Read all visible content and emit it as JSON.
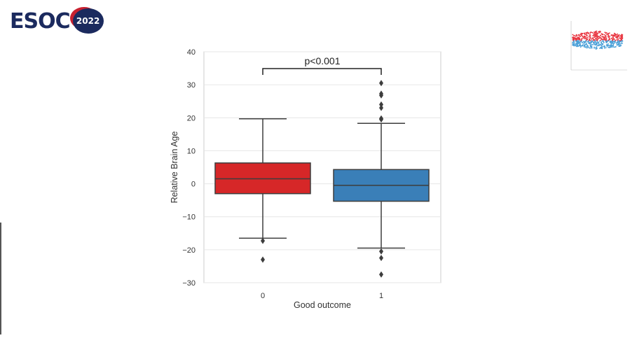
{
  "header": {
    "logo_text": "ESOC",
    "logo_year": "2022"
  },
  "chart_data": {
    "type": "box",
    "xlabel": "Good outcome",
    "ylabel": "Relative Brain Age",
    "categories": [
      "0",
      "1"
    ],
    "ylim": [
      -30,
      40
    ],
    "yticks": [
      "40",
      "30",
      "20",
      "10",
      "0",
      "−10",
      "−20",
      "−30"
    ],
    "ytick_values": [
      40,
      30,
      20,
      10,
      0,
      -10,
      -20,
      -30
    ],
    "grid": true,
    "annotation": "p<0.001",
    "boxes": [
      {
        "category": "0",
        "color": "#d62728",
        "q1": -3,
        "median": 1.5,
        "q3": 6.3,
        "whisker_low": -16.5,
        "whisker_high": 19.7,
        "outliers": [
          -17.3,
          -23
        ]
      },
      {
        "category": "1",
        "color": "#3a7fb8",
        "q1": -5.3,
        "median": -0.5,
        "q3": 4.3,
        "whisker_low": -19.5,
        "whisker_high": 18.3,
        "outliers": [
          19.5,
          19.8,
          23,
          24,
          26.8,
          27.3,
          30.5,
          -20.5,
          -22.5,
          -27.5
        ]
      }
    ]
  },
  "inset": {
    "colors": [
      "#e8343f",
      "#4aa0d8"
    ]
  }
}
